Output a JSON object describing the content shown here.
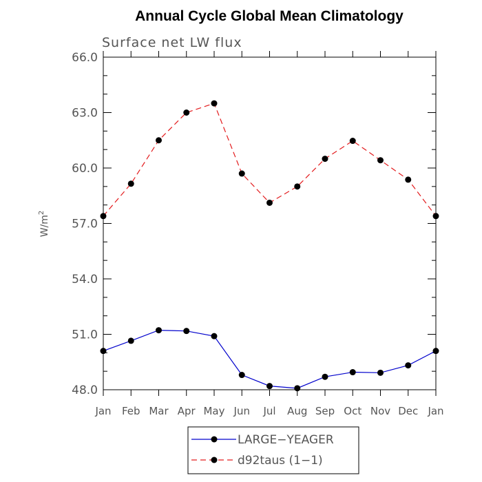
{
  "chart_data": {
    "type": "line",
    "title": "Annual Cycle Global Mean Climatology",
    "subtitle": "Surface net LW flux",
    "ylabel_base": "W/m",
    "ylabel_sup": "2",
    "xlabel": "",
    "categories": [
      "Jan",
      "Feb",
      "Mar",
      "Apr",
      "May",
      "Jun",
      "Jul",
      "Aug",
      "Sep",
      "Oct",
      "Nov",
      "Dec",
      "Jan"
    ],
    "ylim": [
      48.0,
      66.0
    ],
    "yticks": [
      "48.0",
      "51.0",
      "54.0",
      "57.0",
      "60.0",
      "63.0",
      "66.0"
    ],
    "grid": false,
    "legend_placement": "bottom-center",
    "series": [
      {
        "name": "LARGE−YEAGER",
        "color": "#0000cc",
        "dash": "solid",
        "values": [
          50.1,
          50.65,
          51.22,
          51.18,
          50.9,
          48.8,
          48.2,
          48.08,
          48.7,
          48.95,
          48.92,
          49.32,
          50.1
        ]
      },
      {
        "name": "d92taus (1−1)",
        "color": "#e31a1c",
        "dash": "dashed",
        "values": [
          57.4,
          59.15,
          61.5,
          63.0,
          63.5,
          59.7,
          58.12,
          59.0,
          60.5,
          61.47,
          60.42,
          59.37,
          57.4
        ]
      }
    ]
  }
}
